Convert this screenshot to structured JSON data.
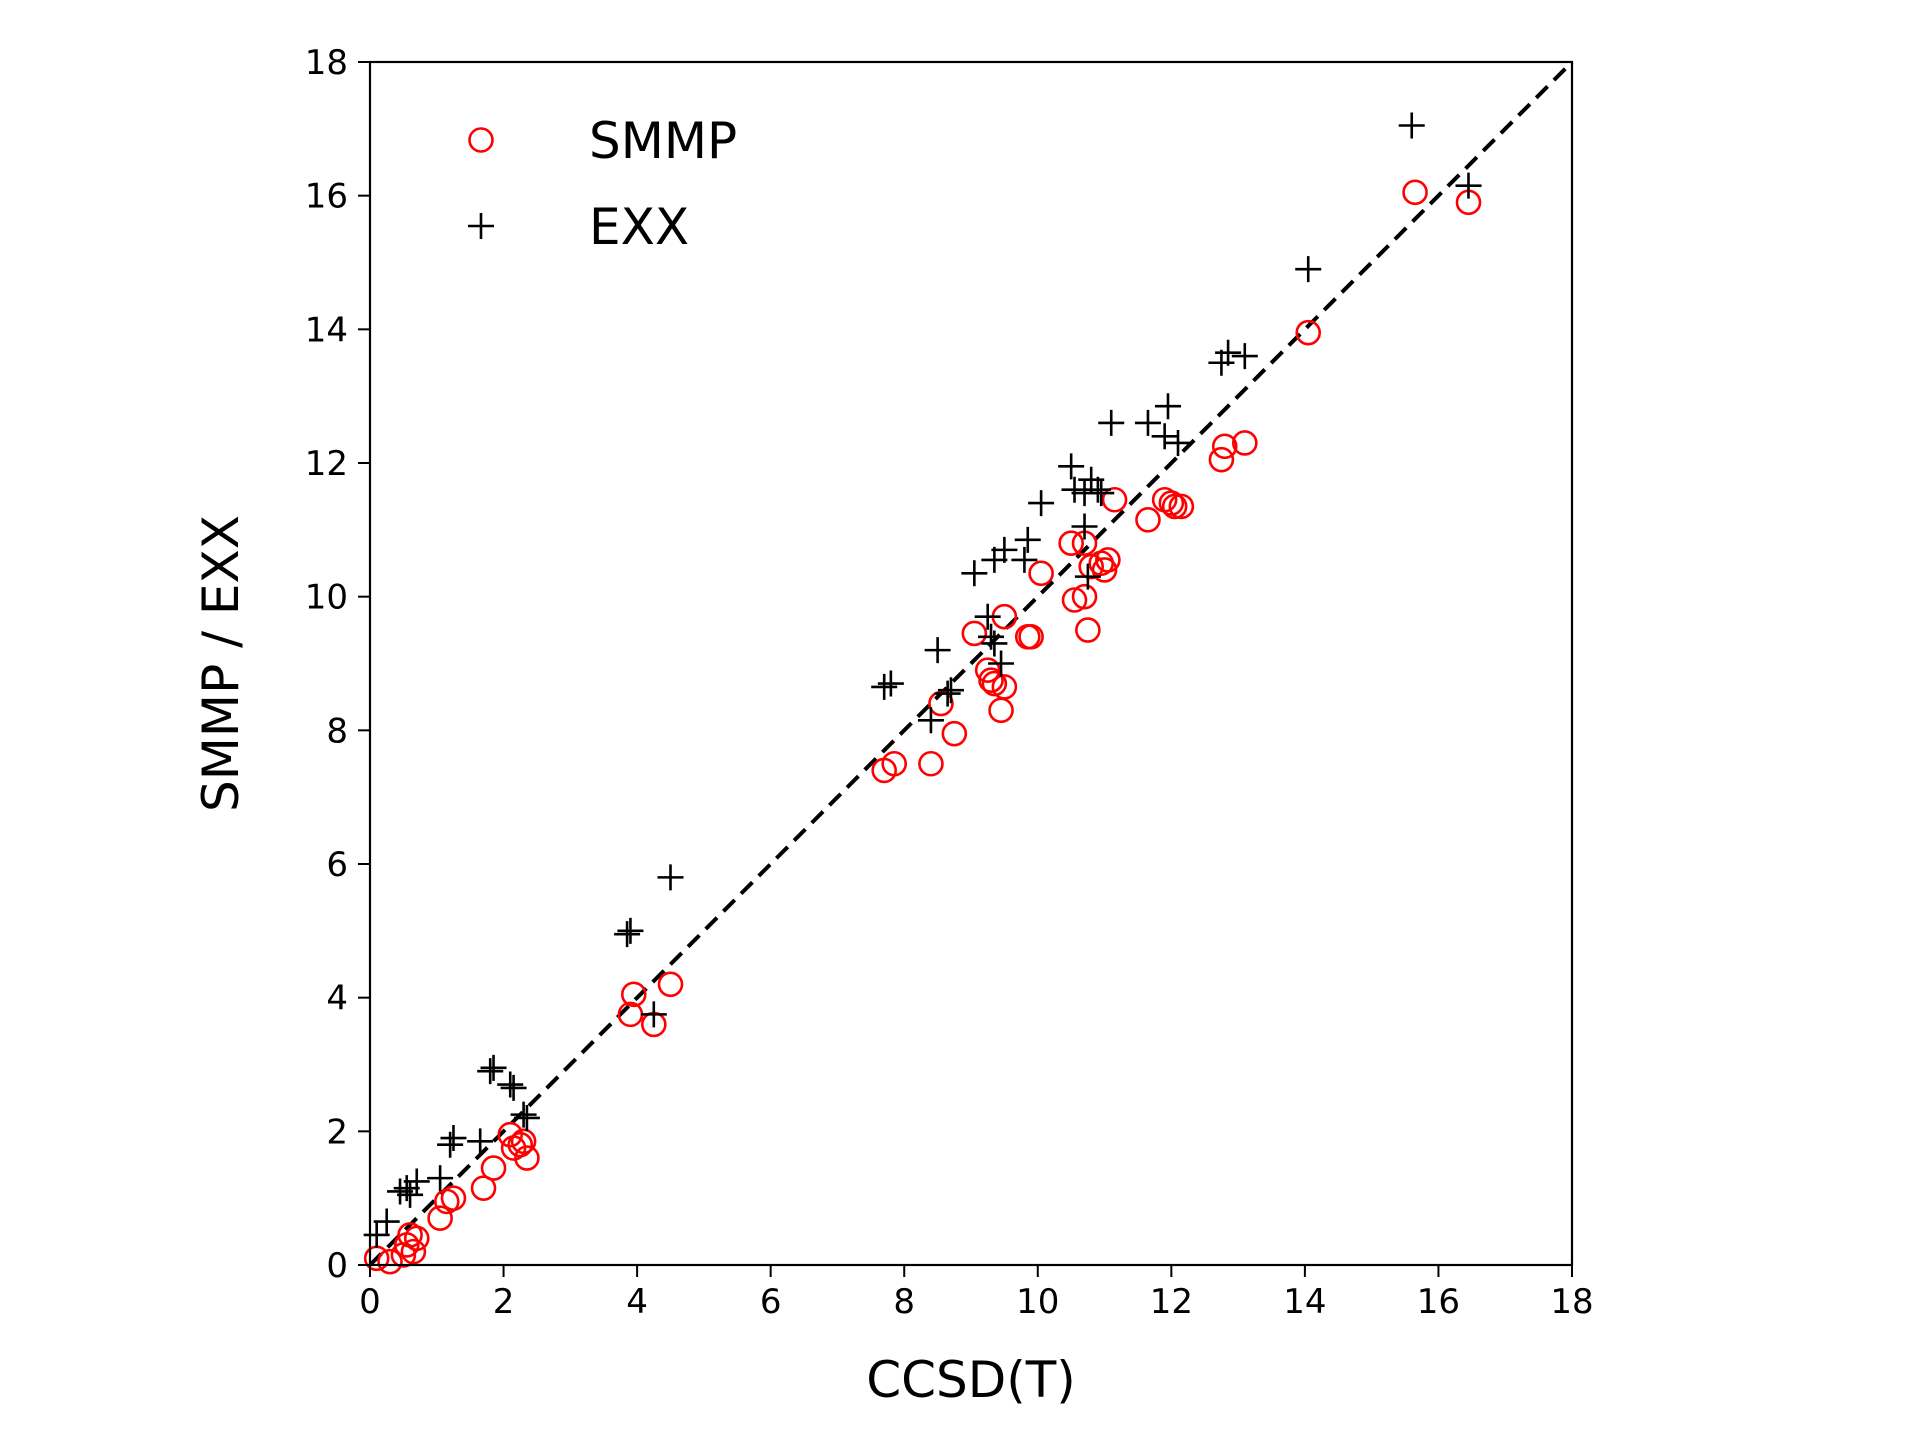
{
  "chart_data": {
    "type": "scatter",
    "title": "",
    "xlabel": "CCSD(T)",
    "ylabel": "SMMP / EXX",
    "xlim": [
      0,
      18
    ],
    "ylim": [
      0,
      18
    ],
    "xticks": [
      0,
      2,
      4,
      6,
      8,
      10,
      12,
      14,
      16,
      18
    ],
    "yticks": [
      0,
      2,
      4,
      6,
      8,
      10,
      12,
      14,
      16,
      18
    ],
    "grid": false,
    "legend_position": "top-left",
    "reference_line": {
      "style": "dashed",
      "color": "#000000",
      "from": [
        0,
        0
      ],
      "to": [
        18,
        18
      ]
    },
    "series": [
      {
        "name": "SMMP",
        "marker": "open-circle",
        "color": "#ff0000",
        "points": [
          [
            0.1,
            0.1
          ],
          [
            0.3,
            0.05
          ],
          [
            0.5,
            0.15
          ],
          [
            0.55,
            0.3
          ],
          [
            0.6,
            0.45
          ],
          [
            0.65,
            0.2
          ],
          [
            0.7,
            0.4
          ],
          [
            1.05,
            0.7
          ],
          [
            1.15,
            0.95
          ],
          [
            1.25,
            1.0
          ],
          [
            1.7,
            1.15
          ],
          [
            1.85,
            1.45
          ],
          [
            2.1,
            1.95
          ],
          [
            2.15,
            1.75
          ],
          [
            2.25,
            1.8
          ],
          [
            2.3,
            1.85
          ],
          [
            2.35,
            1.6
          ],
          [
            3.9,
            3.75
          ],
          [
            3.95,
            4.05
          ],
          [
            4.25,
            3.6
          ],
          [
            4.5,
            4.2
          ],
          [
            7.7,
            7.4
          ],
          [
            7.85,
            7.5
          ],
          [
            8.4,
            7.5
          ],
          [
            8.55,
            8.4
          ],
          [
            8.75,
            7.95
          ],
          [
            9.05,
            9.45
          ],
          [
            9.25,
            8.9
          ],
          [
            9.3,
            8.75
          ],
          [
            9.35,
            8.7
          ],
          [
            9.45,
            8.3
          ],
          [
            9.5,
            8.65
          ],
          [
            9.5,
            9.7
          ],
          [
            9.85,
            9.4
          ],
          [
            9.9,
            9.4
          ],
          [
            10.05,
            10.35
          ],
          [
            10.5,
            10.8
          ],
          [
            10.55,
            9.95
          ],
          [
            10.7,
            10.0
          ],
          [
            10.75,
            9.5
          ],
          [
            10.7,
            10.8
          ],
          [
            10.8,
            10.45
          ],
          [
            10.95,
            10.5
          ],
          [
            11.0,
            10.4
          ],
          [
            11.05,
            10.55
          ],
          [
            11.15,
            11.45
          ],
          [
            11.65,
            11.15
          ],
          [
            11.9,
            11.45
          ],
          [
            12.0,
            11.4
          ],
          [
            12.05,
            11.35
          ],
          [
            12.15,
            11.35
          ],
          [
            12.75,
            12.05
          ],
          [
            12.8,
            12.25
          ],
          [
            13.1,
            12.3
          ],
          [
            14.05,
            13.95
          ],
          [
            15.65,
            16.05
          ],
          [
            16.45,
            15.9
          ]
        ]
      },
      {
        "name": "EXX",
        "marker": "plus",
        "color": "#000000",
        "points": [
          [
            0.1,
            0.45
          ],
          [
            0.25,
            0.65
          ],
          [
            0.45,
            1.1
          ],
          [
            0.55,
            1.15
          ],
          [
            0.6,
            1.05
          ],
          [
            0.7,
            1.25
          ],
          [
            1.05,
            1.3
          ],
          [
            1.2,
            1.8
          ],
          [
            1.25,
            1.9
          ],
          [
            1.65,
            1.85
          ],
          [
            1.8,
            2.9
          ],
          [
            1.85,
            2.95
          ],
          [
            2.1,
            2.7
          ],
          [
            2.15,
            2.65
          ],
          [
            2.3,
            2.25
          ],
          [
            2.35,
            2.2
          ],
          [
            3.85,
            4.95
          ],
          [
            3.9,
            5.0
          ],
          [
            4.25,
            3.75
          ],
          [
            4.5,
            5.8
          ],
          [
            7.7,
            8.65
          ],
          [
            7.8,
            8.7
          ],
          [
            8.4,
            8.15
          ],
          [
            8.5,
            9.2
          ],
          [
            8.65,
            8.55
          ],
          [
            8.7,
            8.6
          ],
          [
            9.05,
            10.35
          ],
          [
            9.25,
            9.7
          ],
          [
            9.3,
            9.4
          ],
          [
            9.35,
            9.3
          ],
          [
            9.45,
            9.0
          ],
          [
            9.35,
            10.55
          ],
          [
            9.5,
            10.7
          ],
          [
            9.8,
            10.55
          ],
          [
            9.85,
            10.85
          ],
          [
            10.05,
            11.4
          ],
          [
            10.5,
            11.95
          ],
          [
            10.55,
            11.6
          ],
          [
            10.7,
            11.05
          ],
          [
            10.75,
            10.3
          ],
          [
            10.7,
            11.55
          ],
          [
            10.8,
            11.75
          ],
          [
            10.9,
            11.6
          ],
          [
            10.95,
            11.55
          ],
          [
            11.1,
            12.6
          ],
          [
            11.65,
            12.6
          ],
          [
            11.9,
            12.4
          ],
          [
            11.95,
            12.85
          ],
          [
            12.1,
            12.3
          ],
          [
            12.75,
            13.5
          ],
          [
            12.85,
            13.65
          ],
          [
            13.1,
            13.6
          ],
          [
            14.05,
            14.9
          ],
          [
            15.6,
            17.05
          ],
          [
            16.45,
            16.15
          ]
        ]
      }
    ]
  }
}
